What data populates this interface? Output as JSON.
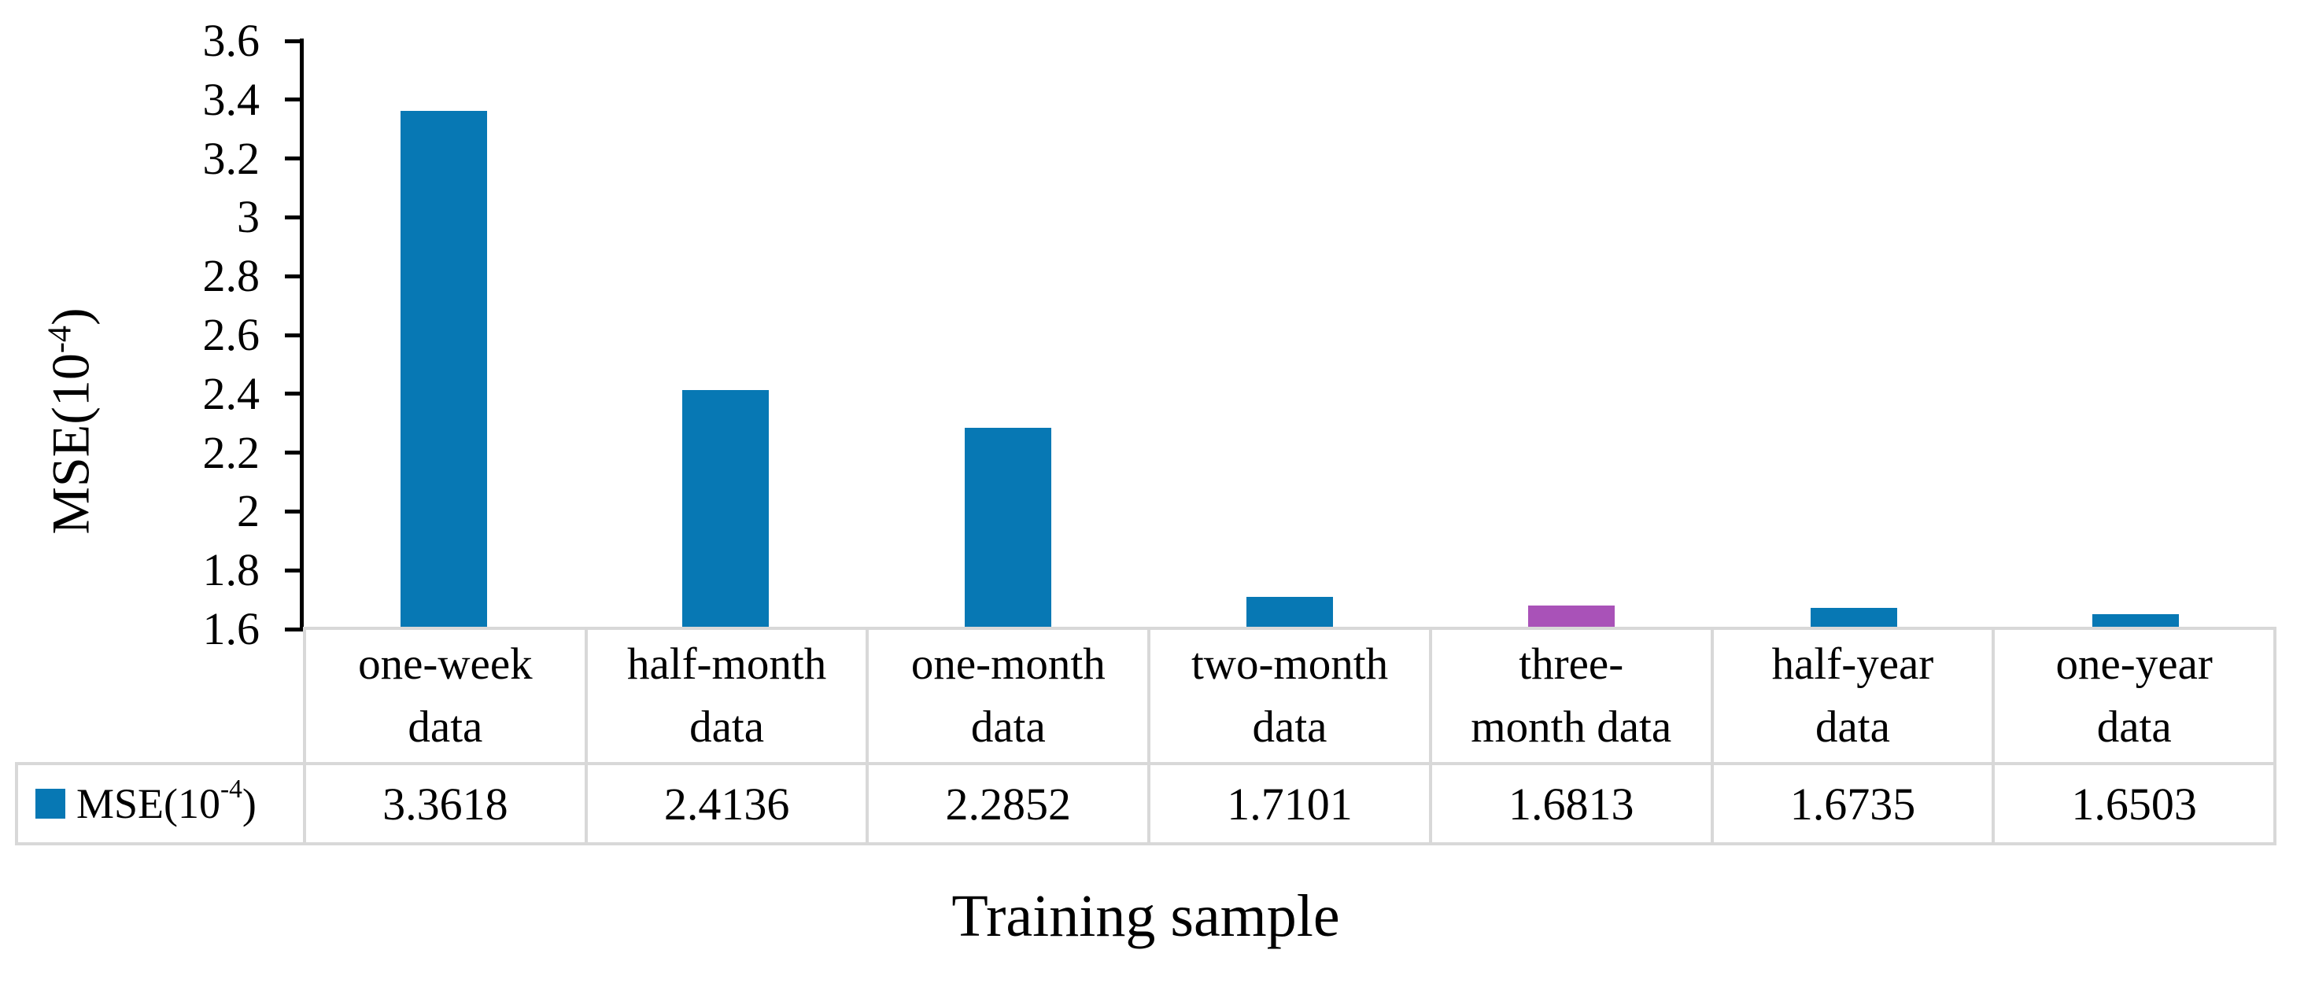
{
  "chart_data": {
    "type": "bar",
    "title": "",
    "xlabel": "Training sample",
    "ylabel": "MSE(10^-4)",
    "categories": [
      "one-week data",
      "half-month data",
      "one-month data",
      "two-month data",
      "three-month data",
      "half-year data",
      "one-year data"
    ],
    "series": [
      {
        "name": "MSE(10^-4)",
        "values": [
          3.3618,
          2.4136,
          2.2852,
          1.7101,
          1.6813,
          1.6735,
          1.6503
        ]
      }
    ],
    "ylim": [
      1.6,
      3.6
    ],
    "ytick_labels": [
      "1.6",
      "1.8",
      "2",
      "2.2",
      "2.4",
      "2.6",
      "2.8",
      "3",
      "3.2",
      "3.4",
      "3.6"
    ],
    "grid": false,
    "legend_position": "bottom-table-left",
    "bar_color": "#0778B4",
    "highlight_index": 4,
    "highlight_color": "#A952B8"
  },
  "yaxis_title": {
    "prefix": "MSE(10",
    "sup": "-4",
    "suffix": ")"
  },
  "legend": {
    "prefix": "MSE(10",
    "sup": "-4",
    "suffix": " )"
  },
  "xaxis_table": {
    "category_lines": [
      [
        "one-week",
        "data"
      ],
      [
        "half-month",
        "data"
      ],
      [
        "one-month",
        "data"
      ],
      [
        "two-month",
        "data"
      ],
      [
        "three-",
        "month data"
      ],
      [
        "half-year",
        "data"
      ],
      [
        "one-year",
        "data"
      ]
    ],
    "value_labels": [
      "3.3618",
      "2.4136",
      "2.2852",
      "1.7101",
      "1.6813",
      "1.6735",
      "1.6503"
    ]
  },
  "xaxis_label": "Training sample",
  "colors": {
    "table_border": "#D8D8D8",
    "axis": "#000000",
    "background": "#FFFFFF"
  }
}
